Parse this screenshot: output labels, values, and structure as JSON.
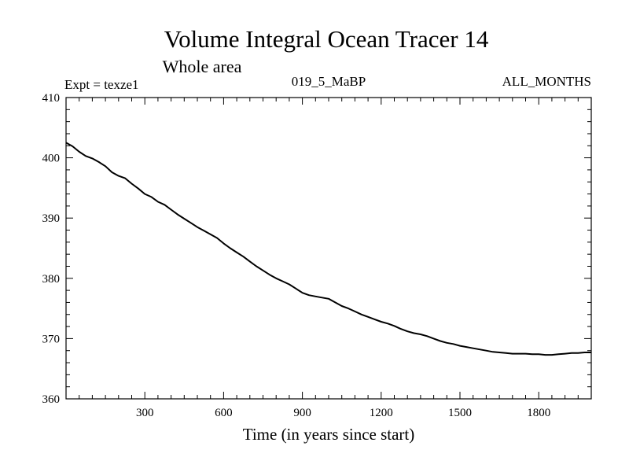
{
  "chart_data": {
    "type": "line",
    "title": "Volume Integral Ocean Tracer 14",
    "subtitle": "Whole area",
    "header_left": "Expt = texze1",
    "header_center": "019_5_MaBP",
    "header_right": "ALL_MONTHS",
    "xlabel": "Time (in years since start)",
    "ylabel": "",
    "xlim": [
      0,
      2000
    ],
    "ylim": [
      360,
      410
    ],
    "xticks": [
      300,
      600,
      900,
      1200,
      1500,
      1800
    ],
    "yticks": [
      360,
      370,
      380,
      390,
      400,
      410
    ],
    "grid": false,
    "series": [
      {
        "name": "Tracer 14",
        "color": "#000000",
        "x": [
          0,
          25,
          50,
          75,
          100,
          125,
          150,
          175,
          200,
          225,
          250,
          275,
          300,
          325,
          350,
          375,
          400,
          425,
          450,
          475,
          500,
          525,
          550,
          575,
          600,
          625,
          650,
          675,
          700,
          725,
          750,
          775,
          800,
          825,
          850,
          875,
          900,
          925,
          950,
          975,
          1000,
          1025,
          1050,
          1075,
          1100,
          1125,
          1150,
          1175,
          1200,
          1225,
          1250,
          1275,
          1300,
          1325,
          1350,
          1375,
          1400,
          1425,
          1450,
          1475,
          1500,
          1525,
          1550,
          1575,
          1600,
          1625,
          1650,
          1675,
          1700,
          1725,
          1750,
          1775,
          1800,
          1825,
          1850,
          1875,
          1900,
          1925,
          1950,
          1975,
          2000
        ],
        "values": [
          402.5,
          401.9,
          401.0,
          400.3,
          399.9,
          399.3,
          398.6,
          397.6,
          397.0,
          396.6,
          395.7,
          394.9,
          394.0,
          393.5,
          392.7,
          392.2,
          391.4,
          390.6,
          389.9,
          389.2,
          388.5,
          387.9,
          387.3,
          386.7,
          385.8,
          385.0,
          384.3,
          383.6,
          382.8,
          382.0,
          381.3,
          380.6,
          380.0,
          379.5,
          379.0,
          378.3,
          377.6,
          377.2,
          377.0,
          376.8,
          376.6,
          376.0,
          375.4,
          375.0,
          374.5,
          374.0,
          373.6,
          373.2,
          372.8,
          372.5,
          372.1,
          371.6,
          371.2,
          370.9,
          370.7,
          370.4,
          370.0,
          369.6,
          369.3,
          369.1,
          368.8,
          368.6,
          368.4,
          368.2,
          368.0,
          367.8,
          367.7,
          367.6,
          367.5,
          367.5,
          367.5,
          367.4,
          367.4,
          367.3,
          367.3,
          367.4,
          367.5,
          367.6,
          367.6,
          367.7,
          367.7
        ]
      }
    ]
  }
}
